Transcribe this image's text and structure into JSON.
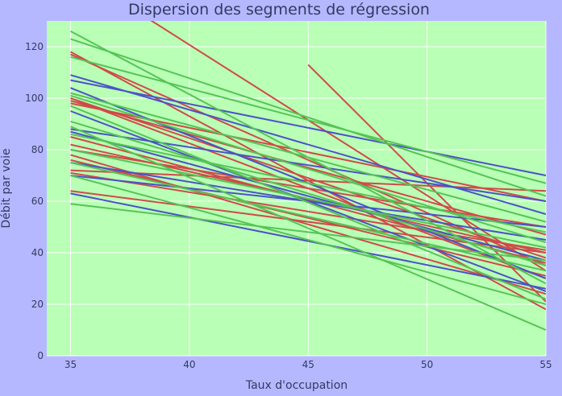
{
  "chart_data": {
    "type": "line",
    "title": "Dispersion des segments de régression",
    "xlabel": "Taux d'occupation",
    "ylabel": "Débit par voie",
    "xlim": [
      34,
      55
    ],
    "ylim": [
      0,
      130
    ],
    "xticks": [
      35,
      40,
      45,
      50,
      55
    ],
    "yticks": [
      0,
      20,
      40,
      60,
      80,
      100,
      120
    ],
    "grid": true,
    "colors": {
      "background": "#b6b8ff",
      "plot_bg": "#b9ffb5",
      "grid": "#ffffff",
      "title": "#2f3b63"
    },
    "series": [
      {
        "color": "#d04a4a",
        "x": [
          35,
          55
        ],
        "y": [
          150,
          33
        ]
      },
      {
        "color": "#d04a4a",
        "x": [
          35,
          55
        ],
        "y": [
          118,
          18
        ]
      },
      {
        "color": "#d04a4a",
        "x": [
          35,
          55
        ],
        "y": [
          117,
          35
        ]
      },
      {
        "color": "#d04a4a",
        "x": [
          35,
          55
        ],
        "y": [
          100,
          30
        ]
      },
      {
        "color": "#d04a4a",
        "x": [
          35,
          55
        ],
        "y": [
          99,
          47
        ]
      },
      {
        "color": "#d04a4a",
        "x": [
          35,
          55
        ],
        "y": [
          98,
          60
        ]
      },
      {
        "color": "#d04a4a",
        "x": [
          35,
          55
        ],
        "y": [
          85,
          36
        ]
      },
      {
        "color": "#d04a4a",
        "x": [
          35,
          55
        ],
        "y": [
          82,
          40
        ]
      },
      {
        "color": "#d04a4a",
        "x": [
          35,
          55
        ],
        "y": [
          80,
          50
        ]
      },
      {
        "color": "#d04a4a",
        "x": [
          35,
          55
        ],
        "y": [
          78,
          24
        ]
      },
      {
        "color": "#d04a4a",
        "x": [
          35,
          55
        ],
        "y": [
          76,
          31
        ]
      },
      {
        "color": "#d04a4a",
        "x": [
          35,
          55
        ],
        "y": [
          72,
          64
        ]
      },
      {
        "color": "#d04a4a",
        "x": [
          35,
          55
        ],
        "y": [
          71,
          41
        ]
      },
      {
        "color": "#d04a4a",
        "x": [
          35,
          55
        ],
        "y": [
          64,
          40
        ]
      },
      {
        "color": "#d04a4a",
        "x": [
          45,
          55
        ],
        "y": [
          113,
          21
        ]
      },
      {
        "color": "#d04a4a",
        "x": [
          35,
          55
        ],
        "y": [
          100,
          38
        ]
      },
      {
        "color": "#4a52c8",
        "x": [
          35,
          55
        ],
        "y": [
          109,
          55
        ]
      },
      {
        "color": "#4a52c8",
        "x": [
          35,
          55
        ],
        "y": [
          107,
          70
        ]
      },
      {
        "color": "#4a52c8",
        "x": [
          35,
          55
        ],
        "y": [
          104,
          30
        ]
      },
      {
        "color": "#4a52c8",
        "x": [
          35,
          55
        ],
        "y": [
          95,
          25
        ]
      },
      {
        "color": "#4a52c8",
        "x": [
          35,
          55
        ],
        "y": [
          88,
          60
        ]
      },
      {
        "color": "#4a52c8",
        "x": [
          35,
          55
        ],
        "y": [
          87,
          37
        ]
      },
      {
        "color": "#4a52c8",
        "x": [
          35,
          55
        ],
        "y": [
          75,
          45
        ]
      },
      {
        "color": "#4a52c8",
        "x": [
          35,
          55
        ],
        "y": [
          70,
          50
        ]
      },
      {
        "color": "#4a52c8",
        "x": [
          35,
          55
        ],
        "y": [
          63,
          26
        ]
      },
      {
        "color": "#56c456",
        "x": [
          35,
          55
        ],
        "y": [
          126,
          28
        ]
      },
      {
        "color": "#56c456",
        "x": [
          35,
          55
        ],
        "y": [
          123,
          62
        ]
      },
      {
        "color": "#56c456",
        "x": [
          35,
          55
        ],
        "y": [
          116,
          67
        ]
      },
      {
        "color": "#56c456",
        "x": [
          35,
          55
        ],
        "y": [
          102,
          52
        ]
      },
      {
        "color": "#56c456",
        "x": [
          35,
          55
        ],
        "y": [
          101,
          44
        ]
      },
      {
        "color": "#56c456",
        "x": [
          35,
          55
        ],
        "y": [
          97,
          22
        ]
      },
      {
        "color": "#56c456",
        "x": [
          35,
          55
        ],
        "y": [
          91,
          35
        ]
      },
      {
        "color": "#56c456",
        "x": [
          35,
          55
        ],
        "y": [
          89,
          10
        ]
      },
      {
        "color": "#56c456",
        "x": [
          35,
          55
        ],
        "y": [
          86,
          48
        ]
      },
      {
        "color": "#56c456",
        "x": [
          35,
          55
        ],
        "y": [
          80,
          42
        ]
      },
      {
        "color": "#56c456",
        "x": [
          35,
          55
        ],
        "y": [
          75,
          33
        ]
      },
      {
        "color": "#56c456",
        "x": [
          35,
          55
        ],
        "y": [
          70,
          20
        ]
      },
      {
        "color": "#56c456",
        "x": [
          35,
          55
        ],
        "y": [
          59,
          37
        ]
      }
    ]
  }
}
